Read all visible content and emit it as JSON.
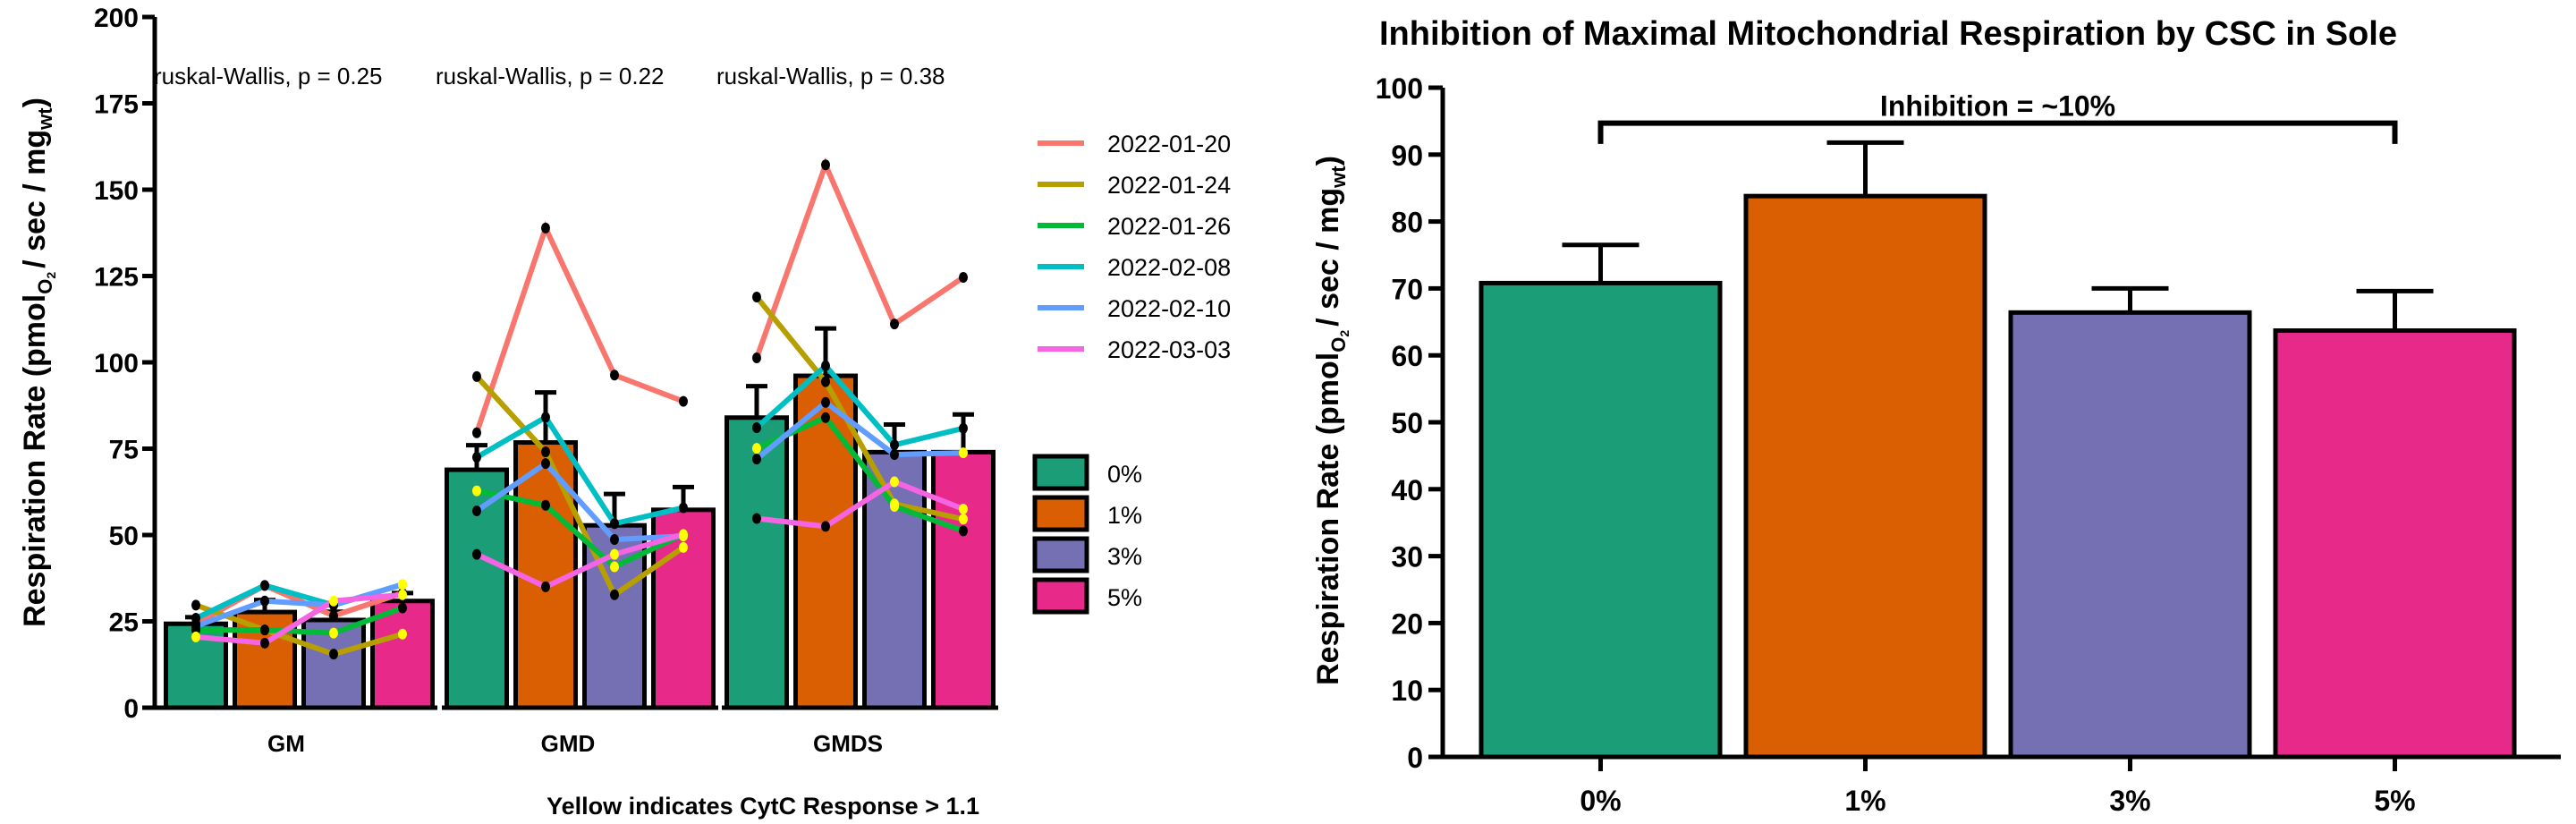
{
  "chart_data": [
    {
      "type": "bar",
      "title": "",
      "xlabel": "",
      "ylabel": "Respiration Rate (pmolO2 / sec / mgwt)",
      "ylabel_parts": {
        "main": "Respiration Rate (pmol",
        "sub1": "O",
        "sub1b": "2",
        "mid": "/ sec / mg",
        "sub2": "wt",
        "end": ")"
      },
      "ylim": [
        0,
        200
      ],
      "yticks": [
        0,
        25,
        50,
        75,
        100,
        125,
        150,
        175,
        200
      ],
      "grid": false,
      "categories": [
        "GM",
        "GMD",
        "GMDS"
      ],
      "stat_annotations": [
        "ruskal-Wallis, p = 0.25",
        "ruskal-Wallis, p = 0.22",
        "ruskal-Wallis, p = 0.38"
      ],
      "note": "Yellow indicates CytC Response > 1.1",
      "bar_series": [
        {
          "name": "0%",
          "color": "#1b9e77",
          "means": [
            24.3,
            68.9,
            84.0
          ],
          "err_upper": [
            26.2,
            76.0,
            93.1
          ]
        },
        {
          "name": "1%",
          "color": "#d95f02",
          "means": [
            27.7,
            76.8,
            96.1
          ],
          "err_upper": [
            31.2,
            91.3,
            109.8
          ]
        },
        {
          "name": "3%",
          "color": "#7570b3",
          "means": [
            25.4,
            52.8,
            74.0
          ],
          "err_upper": [
            27.8,
            61.9,
            82.0
          ]
        },
        {
          "name": "5%",
          "color": "#e7298a",
          "means": [
            30.9,
            57.3,
            74.0
          ],
          "err_upper": [
            33.2,
            63.9,
            84.9
          ]
        }
      ],
      "line_series": [
        {
          "name": "2022-01-20",
          "color": "#f8766d",
          "values": [
            [
              24.3,
              35.4,
              26.6,
              33.2
            ],
            [
              79.6,
              138.9,
              96.3,
              88.7
            ],
            [
              101.3,
              157.2,
              111.1,
              124.6
            ]
          ],
          "yellow": [
            [
              false,
              false,
              false,
              false
            ],
            [
              false,
              false,
              false,
              false
            ],
            [
              false,
              false,
              false,
              false
            ]
          ]
        },
        {
          "name": "2022-01-24",
          "color": "#b79f00",
          "values": [
            [
              29.7,
              22.5,
              15.5,
              21.3
            ],
            [
              95.9,
              74.1,
              32.7,
              46.4
            ],
            [
              118.9,
              94.4,
              59.0,
              54.6
            ]
          ],
          "yellow": [
            [
              false,
              false,
              false,
              true
            ],
            [
              false,
              false,
              false,
              true
            ],
            [
              false,
              false,
              true,
              true
            ]
          ]
        },
        {
          "name": "2022-01-26",
          "color": "#00ba38",
          "values": [
            [
              22.5,
              22.5,
              21.6,
              28.9
            ],
            [
              62.8,
              58.6,
              40.8,
              50.2
            ],
            [
              75.1,
              84.0,
              58.3,
              51.2
            ]
          ],
          "yellow": [
            [
              false,
              false,
              true,
              false
            ],
            [
              true,
              false,
              true,
              false
            ],
            [
              true,
              false,
              true,
              false
            ]
          ]
        },
        {
          "name": "2022-02-08",
          "color": "#00bfc4",
          "values": [
            [
              25.9,
              35.4,
              29.7,
              35.7
            ],
            [
              72.5,
              84.1,
              53.3,
              57.9
            ],
            [
              81.1,
              99.0,
              76.1,
              80.9
            ]
          ],
          "yellow": [
            [
              false,
              false,
              false,
              true
            ],
            [
              false,
              false,
              false,
              false
            ],
            [
              false,
              false,
              false,
              false
            ]
          ]
        },
        {
          "name": "2022-02-10",
          "color": "#619cff",
          "values": [
            [
              23.6,
              30.9,
              29.7,
              35.7
            ],
            [
              57.0,
              70.7,
              48.7,
              49.7
            ],
            [
              72.0,
              88.4,
              73.3,
              73.8
            ]
          ],
          "yellow": [
            [
              false,
              false,
              false,
              true
            ],
            [
              false,
              false,
              false,
              true
            ],
            [
              false,
              false,
              false,
              true
            ]
          ]
        },
        {
          "name": "2022-03-03",
          "color": "#f564e3",
          "values": [
            [
              20.5,
              18.7,
              30.9,
              32.7
            ],
            [
              44.4,
              35.0,
              44.4,
              50.2
            ],
            [
              54.8,
              52.5,
              65.4,
              57.5
            ]
          ],
          "yellow": [
            [
              true,
              false,
              true,
              true
            ],
            [
              false,
              false,
              true,
              true
            ],
            [
              false,
              false,
              true,
              true
            ]
          ]
        }
      ],
      "legend": {
        "lines_title": "",
        "lines": [
          "2022-01-20",
          "2022-01-24",
          "2022-01-26",
          "2022-02-08",
          "2022-02-10",
          "2022-03-03"
        ],
        "fills": [
          "0%",
          "1%",
          "3%",
          "5%"
        ],
        "placement": "right"
      },
      "point_colors": {
        "default": "#000000",
        "highlight": "#ffff00"
      }
    },
    {
      "type": "bar",
      "title": "Inhibition of Maximal Mitochondrial Respiration by CSC in Sole",
      "xlabel": "",
      "ylabel": "Respiration Rate (pmolO2 / sec / mgwt)",
      "ylabel_parts": {
        "main": "Respiration Rate (pmol",
        "sub1": "O",
        "sub1b": "2",
        "mid": "/ sec / mg",
        "sub2": "wt",
        "end": ")"
      },
      "ylim": [
        0,
        100
      ],
      "yticks": [
        0,
        10,
        20,
        30,
        40,
        50,
        60,
        70,
        80,
        90,
        100
      ],
      "grid": false,
      "categories": [
        "0%",
        "1%",
        "3%",
        "5%"
      ],
      "values": [
        70.8,
        83.8,
        66.4,
        63.7
      ],
      "err_upper": [
        76.5,
        91.8,
        70.0,
        69.6
      ],
      "colors": [
        "#1b9e77",
        "#d95f02",
        "#7570b3",
        "#e7298a"
      ],
      "annotation": {
        "text": "Inhibition = ~10%",
        "from": "0%",
        "to": "5%",
        "level": 94.7,
        "drop_to": 91.6
      }
    }
  ]
}
